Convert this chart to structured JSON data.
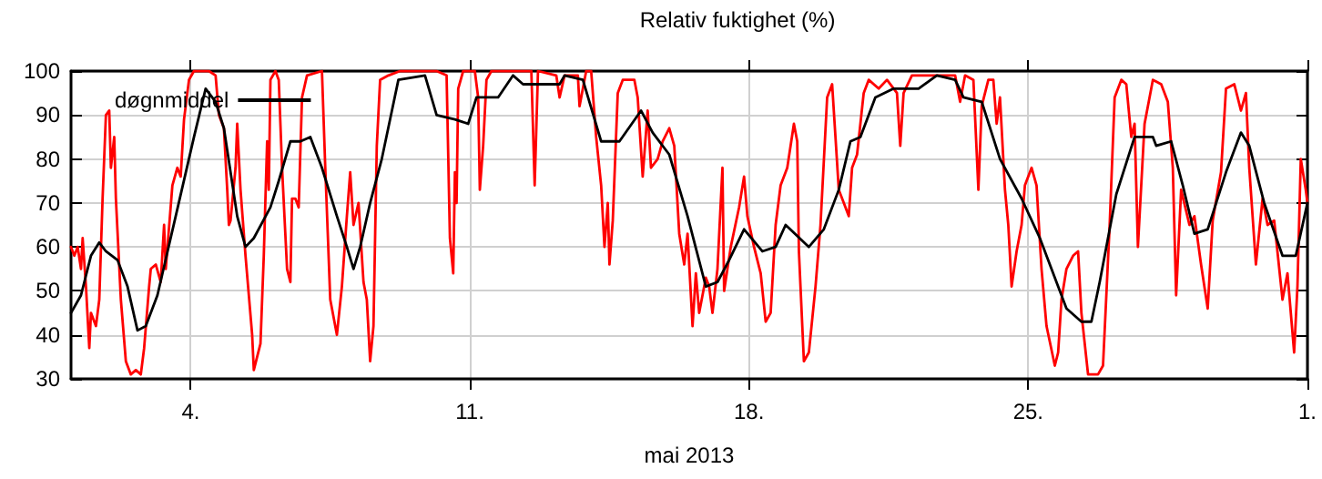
{
  "chart_data": {
    "type": "line",
    "title": "Relativ fuktighet (%)",
    "xlabel": "mai 2013",
    "xlim": [
      "2013-05-01T00:00",
      "2013-06-01T00:00"
    ],
    "xticks": [
      {
        "value": "2013-05-04",
        "label": "4."
      },
      {
        "value": "2013-05-11",
        "label": "11."
      },
      {
        "value": "2013-05-18",
        "label": "18."
      },
      {
        "value": "2013-05-25",
        "label": "25."
      },
      {
        "value": "2013-06-01",
        "label": "1."
      }
    ],
    "ylim": [
      30,
      100
    ],
    "yticks": [
      30,
      40,
      50,
      60,
      70,
      80,
      90,
      100
    ],
    "grid": true,
    "legend": "top left",
    "marker": "none",
    "line_style": "solid",
    "series": [
      {
        "color": "#ff0000",
        "x": [
          "2013-05-01T00:00",
          "2013-05-01T02:00",
          "2013-05-01T04:00",
          "2013-05-01T06:00",
          "2013-05-01T07:00",
          "2013-05-01T09:00",
          "2013-05-01T11:00",
          "2013-05-01T12:00",
          "2013-05-01T15:00",
          "2013-05-01T17:00",
          "2013-05-01T19:00",
          "2013-05-01T21:00",
          "2013-05-01T23:00",
          "2013-05-02T00:00",
          "2013-05-02T02:00",
          "2013-05-02T03:00",
          "2013-05-02T06:00",
          "2013-05-02T09:00",
          "2013-05-02T12:00",
          "2013-05-02T15:00",
          "2013-05-02T18:00",
          "2013-05-02T20:00",
          "2013-05-02T23:00",
          "2013-05-03T00:00",
          "2013-05-03T03:00",
          "2013-05-03T06:00",
          "2013-05-03T08:00",
          "2013-05-03T09:00",
          "2013-05-03T13:00",
          "2013-05-03T16:00",
          "2013-05-03T18:00",
          "2013-05-03T20:00",
          "2013-05-03T23:00",
          "2013-05-04T02:00",
          "2013-05-04T11:00",
          "2013-05-04T15:00",
          "2013-05-04T17:00",
          "2013-05-04T20:00",
          "2013-05-04T22:00",
          "2013-05-04T23:00",
          "2013-05-05T00:00",
          "2013-05-05T03:00",
          "2013-05-05T04:00",
          "2013-05-05T06:00",
          "2013-05-05T09:00",
          "2013-05-05T13:00",
          "2013-05-05T14:00",
          "2013-05-05T18:00",
          "2013-05-05T20:00",
          "2013-05-05T22:00",
          "2013-05-05T23:00",
          "2013-05-06T00:00",
          "2013-05-06T03:00",
          "2013-05-06T05:00",
          "2013-05-06T07:00",
          "2013-05-06T10:00",
          "2013-05-06T12:00",
          "2013-05-06T13:00",
          "2013-05-06T15:00",
          "2013-05-06T17:00",
          "2013-05-06T19:00",
          "2013-05-06T22:00",
          "2013-05-07T07:00",
          "2013-05-07T09:00",
          "2013-05-07T12:00",
          "2013-05-07T16:00",
          "2013-05-07T19:00",
          "2013-05-07T22:00",
          "2013-05-08T00:00",
          "2013-05-08T02:00",
          "2013-05-08T05:00",
          "2013-05-08T08:00",
          "2013-05-08T10:00",
          "2013-05-08T12:00",
          "2013-05-08T14:00",
          "2013-05-08T16:00",
          "2013-05-08T18:00",
          "2013-05-08T23:00",
          "2013-05-09T06:00",
          "2013-05-09T21:00",
          "2013-05-10T04:00",
          "2013-05-10T10:00",
          "2013-05-10T12:00",
          "2013-05-10T14:00",
          "2013-05-10T15:00",
          "2013-05-10T16:00",
          "2013-05-10T17:00",
          "2013-05-10T20:00",
          "2013-05-11T03:00",
          "2013-05-11T05:00",
          "2013-05-11T06:00",
          "2013-05-11T08:00",
          "2013-05-11T10:00",
          "2013-05-11T13:00",
          "2013-05-12T13:00",
          "2013-05-12T15:00",
          "2013-05-12T17:00",
          "2013-05-13T04:00",
          "2013-05-13T06:00",
          "2013-05-13T09:00",
          "2013-05-13T17:00",
          "2013-05-13T18:00",
          "2013-05-13T22:00",
          "2013-05-14T01:00",
          "2013-05-14T04:00",
          "2013-05-14T07:00",
          "2013-05-14T09:00",
          "2013-05-14T11:00",
          "2013-05-14T12:00",
          "2013-05-14T14:00",
          "2013-05-14T17:00",
          "2013-05-14T20:00",
          "2013-05-15T03:00",
          "2013-05-15T05:00",
          "2013-05-15T08:00",
          "2013-05-15T11:00",
          "2013-05-15T13:00",
          "2013-05-15T17:00",
          "2013-05-15T20:00",
          "2013-05-16T00:00",
          "2013-05-16T03:00",
          "2013-05-16T06:00",
          "2013-05-16T09:00",
          "2013-05-16T11:00",
          "2013-05-16T14:00",
          "2013-05-16T16:00",
          "2013-05-16T18:00",
          "2013-05-16T22:00",
          "2013-05-17T00:00",
          "2013-05-17T02:00",
          "2013-05-17T05:00",
          "2013-05-17T08:00",
          "2013-05-17T09:00",
          "2013-05-17T13:00",
          "2013-05-17T18:00",
          "2013-05-17T21:00",
          "2013-05-17T23:00",
          "2013-05-18T03:00",
          "2013-05-18T07:00",
          "2013-05-18T10:00",
          "2013-05-18T13:00",
          "2013-05-18T16:00",
          "2013-05-18T19:00",
          "2013-05-18T23:00",
          "2013-05-19T03:00",
          "2013-05-19T05:00",
          "2013-05-19T06:00",
          "2013-05-19T09:00",
          "2013-05-19T12:00",
          "2013-05-19T16:00",
          "2013-05-19T19:00",
          "2013-05-19T23:00",
          "2013-05-20T02:00",
          "2013-05-20T04:00",
          "2013-05-20T06:00",
          "2013-05-20T09:00",
          "2013-05-20T12:00",
          "2013-05-20T14:00",
          "2013-05-20T17:00",
          "2013-05-20T21:00",
          "2013-05-21T00:00",
          "2013-05-21T06:00",
          "2013-05-21T11:00",
          "2013-05-21T17:00",
          "2013-05-21T19:00",
          "2013-05-21T21:00",
          "2013-05-22T02:00",
          "2013-05-23T04:00",
          "2013-05-23T07:00",
          "2013-05-23T10:00",
          "2013-05-23T15:00",
          "2013-05-23T18:00",
          "2013-05-23T20:00",
          "2013-05-24T00:00",
          "2013-05-24T03:00",
          "2013-05-24T05:00",
          "2013-05-24T07:00",
          "2013-05-24T10:00",
          "2013-05-24T12:00",
          "2013-05-24T14:00",
          "2013-05-24T17:00",
          "2013-05-24T20:00",
          "2013-05-24T22:00",
          "2013-05-25T02:00",
          "2013-05-25T05:00",
          "2013-05-25T08:00",
          "2013-05-25T11:00",
          "2013-05-25T16:00",
          "2013-05-25T18:00",
          "2013-05-25T20:00",
          "2013-05-25T23:00",
          "2013-05-26T03:00",
          "2013-05-26T06:00",
          "2013-05-26T08:00",
          "2013-05-26T12:00",
          "2013-05-26T18:00",
          "2013-05-26T21:00",
          "2013-05-27T01:00",
          "2013-05-27T04:00",
          "2013-05-27T08:00",
          "2013-05-27T11:00",
          "2013-05-27T14:00",
          "2013-05-27T16:00",
          "2013-05-27T18:00",
          "2013-05-27T22:00",
          "2013-05-28T03:00",
          "2013-05-28T08:00",
          "2013-05-28T12:00",
          "2013-05-28T15:00",
          "2013-05-28T17:00",
          "2013-05-28T20:00",
          "2013-05-29T01:00",
          "2013-05-29T04:00",
          "2013-05-29T08:00",
          "2013-05-29T12:00",
          "2013-05-29T15:00",
          "2013-05-29T20:00",
          "2013-05-29T23:00",
          "2013-05-30T04:00",
          "2013-05-30T08:00",
          "2013-05-30T11:00",
          "2013-05-30T13:00",
          "2013-05-30T17:00",
          "2013-05-30T21:00",
          "2013-05-31T00:00",
          "2013-05-31T04:00",
          "2013-05-31T09:00",
          "2013-05-31T12:00",
          "2013-05-31T16:00",
          "2013-05-31T18:00",
          "2013-05-31T20:00",
          "2013-05-31T23:00",
          "2013-06-01T00:00"
        ],
        "values": [
          60,
          58,
          60,
          55,
          62,
          51,
          37,
          45,
          42,
          48,
          71,
          90,
          91,
          78,
          85,
          71,
          48,
          34,
          31,
          32,
          31,
          37,
          51,
          55,
          56,
          52,
          65,
          55,
          74,
          78,
          76,
          89,
          98,
          100,
          100,
          99,
          90,
          87,
          73,
          65,
          66,
          78,
          88,
          73,
          58,
          40,
          32,
          38,
          58,
          84,
          73,
          98,
          100,
          98,
          78,
          55,
          52,
          71,
          71,
          69,
          94,
          99,
          100,
          78,
          48,
          40,
          51,
          67,
          77,
          65,
          70,
          52,
          48,
          34,
          42,
          83,
          98,
          99,
          100,
          100,
          100,
          99,
          62,
          54,
          77,
          70,
          96,
          100,
          100,
          94,
          73,
          83,
          98,
          100,
          100,
          74,
          100,
          99,
          94,
          99,
          99,
          92,
          100,
          100,
          85,
          74,
          60,
          70,
          56,
          66,
          95,
          98,
          98,
          94,
          76,
          91,
          78,
          80,
          84,
          87,
          83,
          63,
          56,
          63,
          42,
          54,
          45,
          53,
          51,
          45,
          55,
          78,
          50,
          60,
          69,
          76,
          67,
          60,
          54,
          43,
          45,
          65,
          74,
          78,
          88,
          84,
          59,
          34,
          36,
          51,
          65,
          94,
          97,
          85,
          73,
          70,
          67,
          78,
          81,
          95,
          98,
          96,
          98,
          95,
          83,
          95,
          99,
          99,
          93,
          99,
          98,
          73,
          92,
          98,
          98,
          88,
          94,
          73,
          65,
          51,
          59,
          65,
          74,
          78,
          74,
          55,
          42,
          33,
          36,
          48,
          55,
          58,
          59,
          45,
          31,
          31,
          33,
          65,
          94,
          98,
          97,
          85,
          88,
          60,
          88,
          98,
          97,
          93,
          78,
          49,
          73,
          65,
          67,
          56,
          46,
          66,
          77,
          96,
          97,
          91,
          95,
          78,
          56,
          71,
          65,
          66,
          48,
          54,
          36,
          51,
          80,
          73,
          70
        ]
      },
      {
        "name": "døgnmiddel",
        "color": "#000000",
        "x": [
          "2013-05-01T00:00",
          "2013-05-01T06:00",
          "2013-05-01T12:00",
          "2013-05-01T17:00",
          "2013-05-01T21:00",
          "2013-05-02T04:00",
          "2013-05-02T10:00",
          "2013-05-02T16:00",
          "2013-05-02T21:00",
          "2013-05-03T04:00",
          "2013-05-03T15:00",
          "2013-05-04T02:00",
          "2013-05-04T09:00",
          "2013-05-04T15:00",
          "2013-05-04T20:00",
          "2013-05-05T04:00",
          "2013-05-05T09:00",
          "2013-05-05T14:00",
          "2013-05-06T00:00",
          "2013-05-06T05:00",
          "2013-05-06T12:00",
          "2013-05-06T18:00",
          "2013-05-07T00:00",
          "2013-05-07T07:00",
          "2013-05-07T16:00",
          "2013-05-07T22:00",
          "2013-05-08T02:00",
          "2013-05-08T06:00",
          "2013-05-08T12:00",
          "2013-05-08T19:00",
          "2013-05-09T05:00",
          "2013-05-09T21:00",
          "2013-05-10T04:00",
          "2013-05-10T15:00",
          "2013-05-10T23:00",
          "2013-05-11T04:00",
          "2013-05-11T17:00",
          "2013-05-12T02:00",
          "2013-05-12T08:00",
          "2013-05-13T06:00",
          "2013-05-13T09:00",
          "2013-05-13T20:00",
          "2013-05-14T07:00",
          "2013-05-14T18:00",
          "2013-05-15T07:00",
          "2013-05-15T14:00",
          "2013-05-16T00:00",
          "2013-05-16T11:00",
          "2013-05-16T22:00",
          "2013-05-17T05:00",
          "2013-05-17T12:00",
          "2013-05-17T21:00",
          "2013-05-18T08:00",
          "2013-05-18T16:00",
          "2013-05-18T22:00",
          "2013-05-19T12:00",
          "2013-05-19T21:00",
          "2013-05-20T06:00",
          "2013-05-20T13:00",
          "2013-05-20T19:00",
          "2013-05-21T04:00",
          "2013-05-21T15:00",
          "2013-05-22T06:00",
          "2013-05-22T17:00",
          "2013-05-23T04:00",
          "2013-05-23T09:00",
          "2013-05-23T20:00",
          "2013-05-24T07:00",
          "2013-05-24T20:00",
          "2013-05-25T07:00",
          "2013-05-25T23:00",
          "2013-05-26T08:00",
          "2013-05-26T14:00",
          "2013-05-26T19:00",
          "2013-05-27T05:00",
          "2013-05-27T16:00",
          "2013-05-28T03:00",
          "2013-05-28T05:00",
          "2013-05-28T14:00",
          "2013-05-28T21:00",
          "2013-05-29T04:00",
          "2013-05-29T12:00",
          "2013-05-29T23:00",
          "2013-05-30T08:00",
          "2013-05-30T13:00",
          "2013-05-30T22:00",
          "2013-05-31T09:00",
          "2013-05-31T17:00",
          "2013-06-01T00:00"
        ],
        "values": [
          45,
          49,
          58,
          61,
          59,
          57,
          51,
          41,
          42,
          49,
          67,
          85,
          96,
          93,
          87,
          67,
          60,
          62,
          69,
          75,
          84,
          84,
          85,
          78,
          67,
          60,
          55,
          60,
          70,
          80,
          98,
          99,
          90,
          89,
          88,
          94,
          94,
          99,
          97,
          97,
          99,
          98,
          84,
          84,
          91,
          86,
          81,
          67,
          51,
          52,
          57,
          64,
          59,
          60,
          65,
          60,
          64,
          73,
          84,
          85,
          94,
          96,
          96,
          99,
          98,
          94,
          93,
          80,
          71,
          62,
          46,
          43,
          43,
          52,
          72,
          85,
          85,
          83,
          84,
          74,
          63,
          64,
          77,
          86,
          83,
          70,
          58,
          58,
          70
        ]
      }
    ]
  }
}
